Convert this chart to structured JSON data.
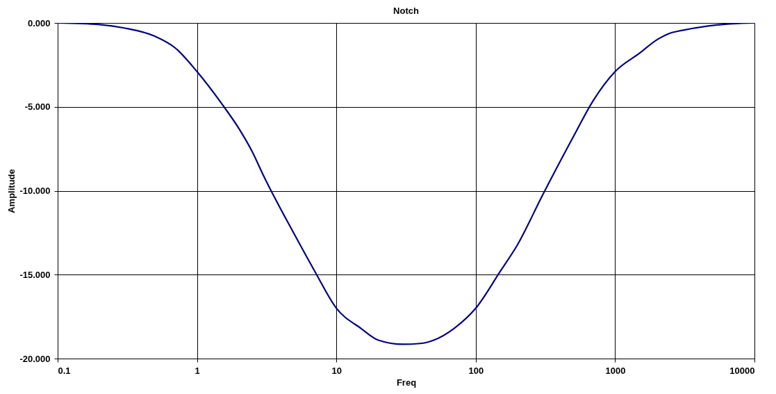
{
  "chart_data": {
    "type": "line",
    "title": "Notch",
    "xlabel": "Freq",
    "ylabel": "Amplitude",
    "log": "x",
    "grid": true,
    "marker": "none",
    "line_style": "solid",
    "xlim": [
      0.1,
      10000
    ],
    "xticks": [
      0.1,
      1,
      10,
      100,
      1000,
      10000
    ],
    "ylim": [
      -20,
      0
    ],
    "yticks": [
      {
        "value": -20,
        "label": "-20.000"
      },
      {
        "value": -15,
        "label": "-15.000"
      },
      {
        "value": -10,
        "label": "-10.000"
      },
      {
        "value": -5,
        "label": "-5.000"
      },
      {
        "value": 0,
        "label": "0.000"
      }
    ],
    "x": [
      0.1,
      0.2,
      0.3,
      0.5,
      0.7,
      1,
      1.5,
      2,
      2.5,
      3,
      5,
      7,
      10,
      15,
      20,
      30,
      40,
      50,
      70,
      100,
      150,
      200,
      300,
      500,
      700,
      1000,
      1500,
      2000,
      2500,
      3000,
      5000,
      7000,
      10000
    ],
    "series": [
      {
        "color": "#000080",
        "values": [
          0,
          -0.1,
          -0.3,
          -0.8,
          -1.5,
          -2.9,
          -4.8,
          -6.3,
          -7.7,
          -9.1,
          -12.6,
          -14.8,
          -17.0,
          -18.2,
          -18.9,
          -19.15,
          -19.1,
          -18.9,
          -18.2,
          -17.0,
          -14.8,
          -13.2,
          -10.3,
          -6.8,
          -4.6,
          -2.9,
          -1.8,
          -1.0,
          -0.6,
          -0.45,
          -0.15,
          -0.05,
          0
        ]
      }
    ]
  }
}
